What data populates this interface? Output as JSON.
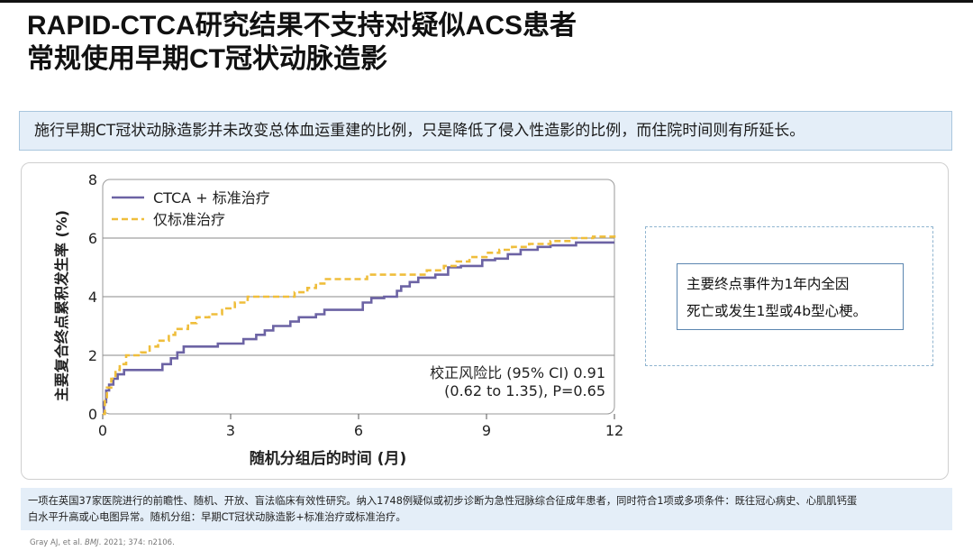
{
  "title": {
    "line1": "RAPID-CTCA研究结果不支持对疑似ACS患者",
    "line2": "常规使用早期CT冠状动脉造影"
  },
  "summary": "施行早期CT冠状动脉造影并未改变总体血运重建的比例，只是降低了侵入性造影的比例，而住院时间则有所延长。",
  "endpoint_box": {
    "line1": "主要终点事件为1年内全因",
    "line2": "死亡或发生1型或4b型心梗。"
  },
  "footnote": {
    "line1": "一项在英国37家医院进行的前瞻性、随机、开放、盲法临床有效性研究。纳入1748例疑似或初步诊断为急性冠脉综合征成年患者，同时符合1项或多项条件：既往冠心病史、心肌肌钙蛋",
    "line2": "白水平升高或心电图异常。随机分组：早期CT冠状动脉造影+标准治疗或标准治疗。"
  },
  "citation": {
    "authors": "Gray AJ, et al. ",
    "journal": "BMJ",
    "ref": ". 2021; 374: n2106."
  },
  "colors": {
    "ctca": "#6c63a4",
    "standard": "#efbe3c",
    "summary_bg": "#e4eef8",
    "accent_border": "#8fb4cf"
  },
  "chart_data": {
    "type": "line",
    "xlabel": "随机分组后的时间 (月)",
    "ylabel": "主要复合终点累积发生率 (%)",
    "xlim": [
      0,
      12
    ],
    "ylim": [
      0,
      8
    ],
    "xticks": [
      0,
      3,
      6,
      9,
      12
    ],
    "yticks": [
      0,
      2,
      4,
      6,
      8
    ],
    "grid": "horizontal",
    "legend_position": "top-left",
    "annotation": {
      "line1": "校正风险比 (95% CI) 0.91",
      "line2": "(0.62 to 1.35), P=0.65"
    },
    "series": [
      {
        "name": "CTCA + 标准治疗",
        "color": "#6c63a4",
        "style": "solid",
        "points": [
          [
            0,
            0
          ],
          [
            0.03,
            0.4
          ],
          [
            0.08,
            0.8
          ],
          [
            0.15,
            1.0
          ],
          [
            0.25,
            1.2
          ],
          [
            0.35,
            1.35
          ],
          [
            0.5,
            1.5
          ],
          [
            1.2,
            1.5
          ],
          [
            1.4,
            1.7
          ],
          [
            1.6,
            1.9
          ],
          [
            1.75,
            2.1
          ],
          [
            1.9,
            2.3
          ],
          [
            2.6,
            2.3
          ],
          [
            2.7,
            2.4
          ],
          [
            3.2,
            2.4
          ],
          [
            3.3,
            2.55
          ],
          [
            3.6,
            2.7
          ],
          [
            3.8,
            2.85
          ],
          [
            4.0,
            3.0
          ],
          [
            4.4,
            3.15
          ],
          [
            4.6,
            3.3
          ],
          [
            5.0,
            3.4
          ],
          [
            5.2,
            3.55
          ],
          [
            5.8,
            3.55
          ],
          [
            6.1,
            3.8
          ],
          [
            6.3,
            3.95
          ],
          [
            6.6,
            4.0
          ],
          [
            6.9,
            4.2
          ],
          [
            7.0,
            4.35
          ],
          [
            7.2,
            4.5
          ],
          [
            7.4,
            4.65
          ],
          [
            7.8,
            4.75
          ],
          [
            8.1,
            5.0
          ],
          [
            8.4,
            5.05
          ],
          [
            8.9,
            5.25
          ],
          [
            9.2,
            5.3
          ],
          [
            9.5,
            5.45
          ],
          [
            9.8,
            5.6
          ],
          [
            10.2,
            5.7
          ],
          [
            10.5,
            5.75
          ],
          [
            11.0,
            5.75
          ],
          [
            11.1,
            5.85
          ],
          [
            12.0,
            5.85
          ]
        ]
      },
      {
        "name": "仅标准治疗",
        "color": "#efbe3c",
        "style": "dashed",
        "points": [
          [
            0,
            0
          ],
          [
            0.05,
            0.5
          ],
          [
            0.1,
            0.9
          ],
          [
            0.2,
            1.2
          ],
          [
            0.3,
            1.5
          ],
          [
            0.4,
            1.7
          ],
          [
            0.55,
            2.0
          ],
          [
            0.9,
            2.1
          ],
          [
            1.1,
            2.3
          ],
          [
            1.3,
            2.5
          ],
          [
            1.55,
            2.7
          ],
          [
            1.7,
            2.9
          ],
          [
            2.0,
            3.1
          ],
          [
            2.2,
            3.3
          ],
          [
            2.5,
            3.4
          ],
          [
            2.8,
            3.6
          ],
          [
            3.1,
            3.8
          ],
          [
            3.4,
            4.0
          ],
          [
            4.5,
            4.15
          ],
          [
            4.8,
            4.3
          ],
          [
            5.0,
            4.45
          ],
          [
            5.2,
            4.6
          ],
          [
            6.0,
            4.6
          ],
          [
            6.2,
            4.75
          ],
          [
            7.4,
            4.75
          ],
          [
            7.6,
            4.9
          ],
          [
            8.0,
            5.05
          ],
          [
            8.3,
            5.2
          ],
          [
            8.6,
            5.35
          ],
          [
            9.0,
            5.5
          ],
          [
            9.3,
            5.6
          ],
          [
            9.6,
            5.7
          ],
          [
            10.0,
            5.8
          ],
          [
            10.5,
            5.9
          ],
          [
            11.0,
            6.0
          ],
          [
            11.5,
            6.05
          ],
          [
            12.0,
            6.1
          ]
        ]
      }
    ]
  }
}
